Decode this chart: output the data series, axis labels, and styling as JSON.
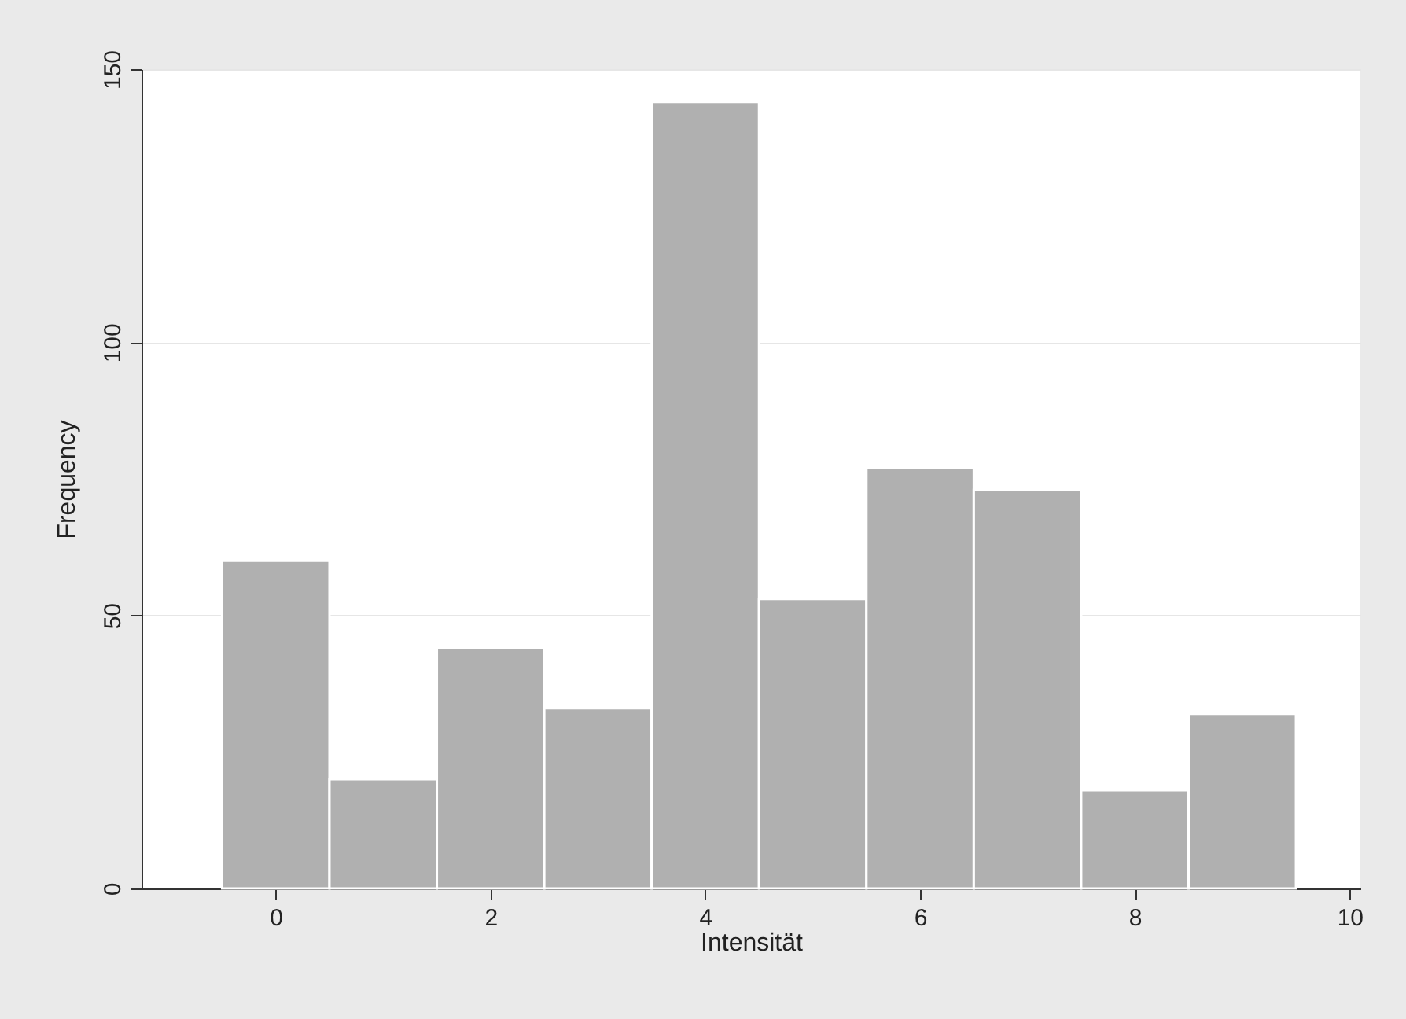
{
  "chart_data": {
    "type": "histogram",
    "bins": [
      -0.5,
      0.5,
      1.5,
      2.5,
      3.5,
      4.5,
      5.5,
      6.5,
      7.5,
      8.5,
      9.5
    ],
    "values": [
      60,
      20,
      44,
      33,
      144,
      53,
      77,
      73,
      18,
      32
    ],
    "color": "#b0b0b0",
    "xlabel": "Intensität",
    "ylabel": "Frequency",
    "xlim": [
      -1.25,
      10.1
    ],
    "xticks": [
      0,
      2,
      4,
      6,
      8,
      10
    ],
    "ylim": [
      0,
      150
    ],
    "yticks": [
      0,
      50,
      100,
      150
    ],
    "grid": "y"
  }
}
